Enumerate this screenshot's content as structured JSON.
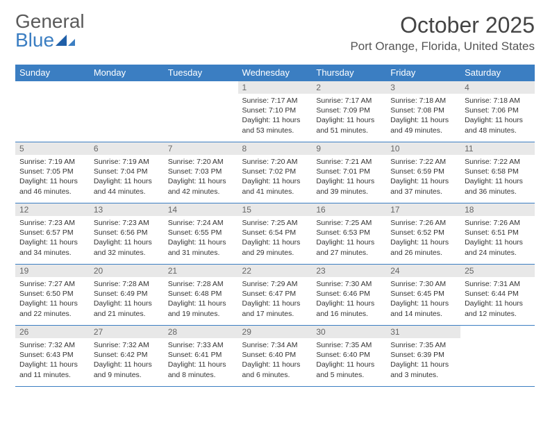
{
  "logo": {
    "textA": "General",
    "textB": "Blue"
  },
  "title": "October 2025",
  "location": "Port Orange, Florida, United States",
  "colors": {
    "header_bg": "#3b7ec2",
    "header_text": "#ffffff",
    "daynum_bg": "#e8e8e8",
    "daynum_text": "#666666",
    "border": "#3b7ec2",
    "body_text": "#333333"
  },
  "weekdays": [
    "Sunday",
    "Monday",
    "Tuesday",
    "Wednesday",
    "Thursday",
    "Friday",
    "Saturday"
  ],
  "startOffset": 3,
  "days": [
    {
      "n": "1",
      "sunrise": "Sunrise: 7:17 AM",
      "sunset": "Sunset: 7:10 PM",
      "day": "Daylight: 11 hours and 53 minutes."
    },
    {
      "n": "2",
      "sunrise": "Sunrise: 7:17 AM",
      "sunset": "Sunset: 7:09 PM",
      "day": "Daylight: 11 hours and 51 minutes."
    },
    {
      "n": "3",
      "sunrise": "Sunrise: 7:18 AM",
      "sunset": "Sunset: 7:08 PM",
      "day": "Daylight: 11 hours and 49 minutes."
    },
    {
      "n": "4",
      "sunrise": "Sunrise: 7:18 AM",
      "sunset": "Sunset: 7:06 PM",
      "day": "Daylight: 11 hours and 48 minutes."
    },
    {
      "n": "5",
      "sunrise": "Sunrise: 7:19 AM",
      "sunset": "Sunset: 7:05 PM",
      "day": "Daylight: 11 hours and 46 minutes."
    },
    {
      "n": "6",
      "sunrise": "Sunrise: 7:19 AM",
      "sunset": "Sunset: 7:04 PM",
      "day": "Daylight: 11 hours and 44 minutes."
    },
    {
      "n": "7",
      "sunrise": "Sunrise: 7:20 AM",
      "sunset": "Sunset: 7:03 PM",
      "day": "Daylight: 11 hours and 42 minutes."
    },
    {
      "n": "8",
      "sunrise": "Sunrise: 7:20 AM",
      "sunset": "Sunset: 7:02 PM",
      "day": "Daylight: 11 hours and 41 minutes."
    },
    {
      "n": "9",
      "sunrise": "Sunrise: 7:21 AM",
      "sunset": "Sunset: 7:01 PM",
      "day": "Daylight: 11 hours and 39 minutes."
    },
    {
      "n": "10",
      "sunrise": "Sunrise: 7:22 AM",
      "sunset": "Sunset: 6:59 PM",
      "day": "Daylight: 11 hours and 37 minutes."
    },
    {
      "n": "11",
      "sunrise": "Sunrise: 7:22 AM",
      "sunset": "Sunset: 6:58 PM",
      "day": "Daylight: 11 hours and 36 minutes."
    },
    {
      "n": "12",
      "sunrise": "Sunrise: 7:23 AM",
      "sunset": "Sunset: 6:57 PM",
      "day": "Daylight: 11 hours and 34 minutes."
    },
    {
      "n": "13",
      "sunrise": "Sunrise: 7:23 AM",
      "sunset": "Sunset: 6:56 PM",
      "day": "Daylight: 11 hours and 32 minutes."
    },
    {
      "n": "14",
      "sunrise": "Sunrise: 7:24 AM",
      "sunset": "Sunset: 6:55 PM",
      "day": "Daylight: 11 hours and 31 minutes."
    },
    {
      "n": "15",
      "sunrise": "Sunrise: 7:25 AM",
      "sunset": "Sunset: 6:54 PM",
      "day": "Daylight: 11 hours and 29 minutes."
    },
    {
      "n": "16",
      "sunrise": "Sunrise: 7:25 AM",
      "sunset": "Sunset: 6:53 PM",
      "day": "Daylight: 11 hours and 27 minutes."
    },
    {
      "n": "17",
      "sunrise": "Sunrise: 7:26 AM",
      "sunset": "Sunset: 6:52 PM",
      "day": "Daylight: 11 hours and 26 minutes."
    },
    {
      "n": "18",
      "sunrise": "Sunrise: 7:26 AM",
      "sunset": "Sunset: 6:51 PM",
      "day": "Daylight: 11 hours and 24 minutes."
    },
    {
      "n": "19",
      "sunrise": "Sunrise: 7:27 AM",
      "sunset": "Sunset: 6:50 PM",
      "day": "Daylight: 11 hours and 22 minutes."
    },
    {
      "n": "20",
      "sunrise": "Sunrise: 7:28 AM",
      "sunset": "Sunset: 6:49 PM",
      "day": "Daylight: 11 hours and 21 minutes."
    },
    {
      "n": "21",
      "sunrise": "Sunrise: 7:28 AM",
      "sunset": "Sunset: 6:48 PM",
      "day": "Daylight: 11 hours and 19 minutes."
    },
    {
      "n": "22",
      "sunrise": "Sunrise: 7:29 AM",
      "sunset": "Sunset: 6:47 PM",
      "day": "Daylight: 11 hours and 17 minutes."
    },
    {
      "n": "23",
      "sunrise": "Sunrise: 7:30 AM",
      "sunset": "Sunset: 6:46 PM",
      "day": "Daylight: 11 hours and 16 minutes."
    },
    {
      "n": "24",
      "sunrise": "Sunrise: 7:30 AM",
      "sunset": "Sunset: 6:45 PM",
      "day": "Daylight: 11 hours and 14 minutes."
    },
    {
      "n": "25",
      "sunrise": "Sunrise: 7:31 AM",
      "sunset": "Sunset: 6:44 PM",
      "day": "Daylight: 11 hours and 12 minutes."
    },
    {
      "n": "26",
      "sunrise": "Sunrise: 7:32 AM",
      "sunset": "Sunset: 6:43 PM",
      "day": "Daylight: 11 hours and 11 minutes."
    },
    {
      "n": "27",
      "sunrise": "Sunrise: 7:32 AM",
      "sunset": "Sunset: 6:42 PM",
      "day": "Daylight: 11 hours and 9 minutes."
    },
    {
      "n": "28",
      "sunrise": "Sunrise: 7:33 AM",
      "sunset": "Sunset: 6:41 PM",
      "day": "Daylight: 11 hours and 8 minutes."
    },
    {
      "n": "29",
      "sunrise": "Sunrise: 7:34 AM",
      "sunset": "Sunset: 6:40 PM",
      "day": "Daylight: 11 hours and 6 minutes."
    },
    {
      "n": "30",
      "sunrise": "Sunrise: 7:35 AM",
      "sunset": "Sunset: 6:40 PM",
      "day": "Daylight: 11 hours and 5 minutes."
    },
    {
      "n": "31",
      "sunrise": "Sunrise: 7:35 AM",
      "sunset": "Sunset: 6:39 PM",
      "day": "Daylight: 11 hours and 3 minutes."
    }
  ]
}
